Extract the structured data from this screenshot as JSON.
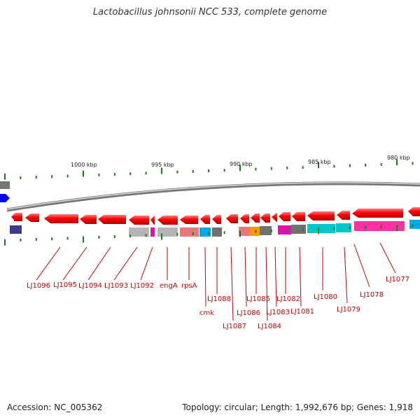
{
  "title": "Lactobacillus johnsonii NCC 533, complete genome",
  "footer": {
    "accession": "Accession: NC_005362",
    "info": "Topology: circular; Length: 1,992,676 bp; Genes: 1,918"
  },
  "scale_labels": [
    "1000 kbp",
    "995 kbp",
    "990 kbp",
    "985 kbp",
    "980 kbp"
  ],
  "gene_labels": [
    "LJ1096",
    "LJ1095",
    "LJ1094",
    "LJ1093",
    "LJ1092",
    "engA",
    "rpsA",
    "cmk",
    "LJ1088",
    "LJ1087",
    "LJ1086",
    "LJ1085",
    "LJ1084",
    "LJ1083",
    "LJ1082",
    "LJ1081",
    "LJ1080",
    "LJ1079",
    "LJ1078",
    "LJ1077"
  ],
  "colors": {
    "gene": "#ff0000",
    "backbone": "#888888",
    "tick": "#1a7a1a",
    "label": "#cc0000",
    "left_feature": "#0000ff"
  }
}
